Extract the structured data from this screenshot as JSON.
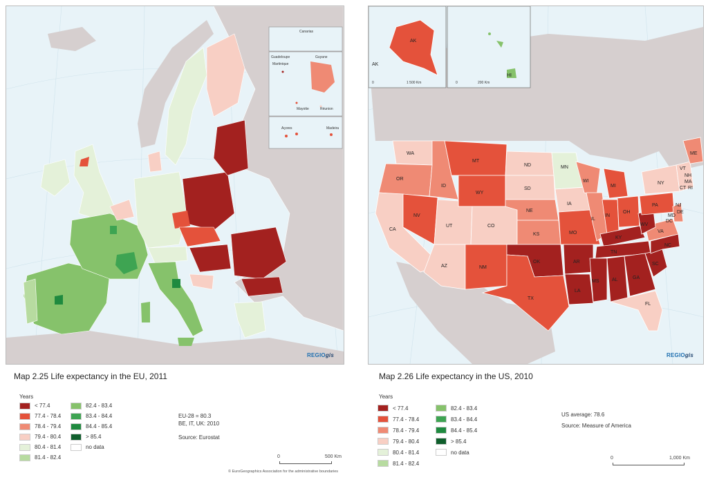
{
  "colors": {
    "lt_77_4": "#a3211f",
    "c77_4_78_4": "#e4523b",
    "c78_4_79_4": "#ef8a74",
    "c79_4_80_4": "#f8cfc4",
    "c80_4_81_4": "#e4f1d9",
    "c81_4_82_4": "#b7dba0",
    "c82_4_83_4": "#86c26b",
    "c83_4_84_4": "#3ea452",
    "c84_4_85_4": "#1f8a3f",
    "gt_85_4": "#0f5e2c",
    "no_data": "#ffffff",
    "sea": "#e8f3f8",
    "land_other": "#d6cfcf"
  },
  "eu": {
    "title": "Map 2.25 Life expectancy in the EU, 2011",
    "legend_header": "Years",
    "legend_left": [
      "< 77.4",
      "77.4 - 78.4",
      "78.4 - 79.4",
      "79.4 - 80.4",
      "80.4 - 81.4",
      "81.4 - 82.4"
    ],
    "legend_right": [
      "82.4 - 83.4",
      "83.4 - 84.4",
      "84.4 - 85.4",
      "> 85.4",
      "no data"
    ],
    "note_line1": "EU-28 = 80.3",
    "note_line2": "BE, IT, UK: 2010",
    "source": "Source: Eurostat",
    "scale_left": "0",
    "scale_right": "500 Km",
    "brand_a": "REGIO",
    "brand_b": "gis",
    "copyright": "© EuroGeographics Association for the administrative boundaries",
    "inset_labels": {
      "canarias": "Canarias",
      "guadeloupe": "Guadeloupe",
      "martinique": "Martinique",
      "guyane": "Guyane",
      "mayotte": "Mayotte",
      "reunion": "Réunion",
      "acores": "Açores",
      "madeira": "Madeira"
    }
  },
  "us": {
    "title": "Map 2.26 Life expectancy in the US, 2010",
    "legend_header": "Years",
    "legend_left": [
      "< 77.4",
      "77.4 - 78.4",
      "78.4 - 79.4",
      "79.4 - 80.4",
      "80.4 - 81.4",
      "81.4 - 82.4"
    ],
    "legend_right": [
      "82.4 - 83.4",
      "83.4 - 84.4",
      "84.4 - 85.4",
      "> 85.4",
      "no data"
    ],
    "note_line1": "US average: 78.6",
    "source": "Source: Measure of America",
    "scale_left": "0",
    "scale_right": "1,000 Km",
    "brand_a": "REGIO",
    "brand_b": "gis",
    "inset_ak_label": "AK",
    "inset_ak_label2": "AK",
    "inset_ak_scale_left": "0",
    "inset_ak_scale_right": "1 500 Km",
    "inset_hi_label": "HI",
    "inset_hi_scale_left": "0",
    "inset_hi_scale_right": "200 Km",
    "state_labels": {
      "WA": "WA",
      "OR": "OR",
      "CA": "CA",
      "ID": "ID",
      "NV": "NV",
      "MT": "MT",
      "WY": "WY",
      "UT": "UT",
      "CO": "CO",
      "AZ": "AZ",
      "NM": "NM",
      "ND": "ND",
      "SD": "SD",
      "NE": "NE",
      "KS": "KS",
      "OK": "OK",
      "TX": "TX",
      "MN": "MN",
      "IA": "IA",
      "MO": "MO",
      "AR": "AR",
      "LA": "LA",
      "WI": "WI",
      "IL": "IL",
      "MI": "MI",
      "IN": "IN",
      "OH": "OH",
      "KY": "KY",
      "TN": "TN",
      "MS": "MS",
      "AL": "AL",
      "GA": "GA",
      "FL": "FL",
      "SC": "SC",
      "NC": "NC",
      "VA": "VA",
      "WV": "WV",
      "PA": "PA",
      "NY": "NY",
      "ME": "ME",
      "VT": "VT",
      "NH": "NH",
      "MA": "MA",
      "CT": "CT",
      "RI": "RI",
      "NJ": "NJ",
      "DE": "DE",
      "MD": "MD",
      "DC": "DC"
    }
  }
}
